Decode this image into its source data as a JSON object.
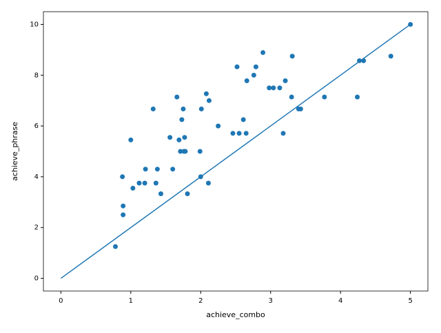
{
  "chart_data": {
    "type": "scatter",
    "xlabel": "achieve_combo",
    "ylabel": "achieve_phrase",
    "color": "#1f77b4",
    "x": [
      5,
      0.78,
      0.89,
      0.89,
      0.88,
      1.03,
      1.0,
      1.12,
      1.2,
      1.21,
      1.32,
      1.36,
      1.38,
      1.43,
      1.56,
      1.6,
      1.66,
      1.69,
      1.71,
      1.73,
      1.75,
      1.76,
      1.77,
      1.78,
      1.81,
      1.99,
      2.0,
      2.01,
      2.08,
      2.12,
      2.11,
      2.25,
      2.46,
      2.52,
      2.55,
      2.61,
      2.65,
      2.66,
      2.76,
      2.79,
      2.89,
      2.98,
      3.04,
      3.13,
      3.18,
      3.21,
      3.3,
      3.31,
      3.4,
      3.43,
      3.77,
      4.24,
      4.27,
      4.33,
      4.72
    ],
    "y": [
      10,
      1.25,
      2.5,
      2.85,
      4.0,
      3.55,
      5.45,
      3.75,
      3.75,
      4.3,
      6.67,
      3.75,
      4.3,
      3.33,
      5.55,
      4.3,
      7.14,
      5.45,
      5.0,
      6.25,
      6.67,
      5.0,
      5.55,
      5.0,
      3.33,
      5.0,
      4.0,
      6.67,
      7.27,
      7.0,
      3.75,
      6.0,
      5.71,
      8.33,
      5.71,
      6.25,
      5.71,
      7.78,
      8.0,
      8.33,
      8.89,
      7.5,
      7.5,
      7.5,
      5.71,
      7.78,
      7.14,
      8.75,
      6.67,
      6.67,
      7.14,
      7.14,
      8.57,
      8.57,
      8.75
    ],
    "line": {
      "x": [
        0,
        5
      ],
      "y": [
        0,
        10
      ]
    },
    "xlim": [
      -0.25,
      5.25
    ],
    "ylim": [
      -0.5,
      10.5
    ],
    "xticks": [
      0,
      1,
      2,
      3,
      4,
      5
    ],
    "yticks": [
      0,
      2,
      4,
      6,
      8,
      10
    ]
  }
}
